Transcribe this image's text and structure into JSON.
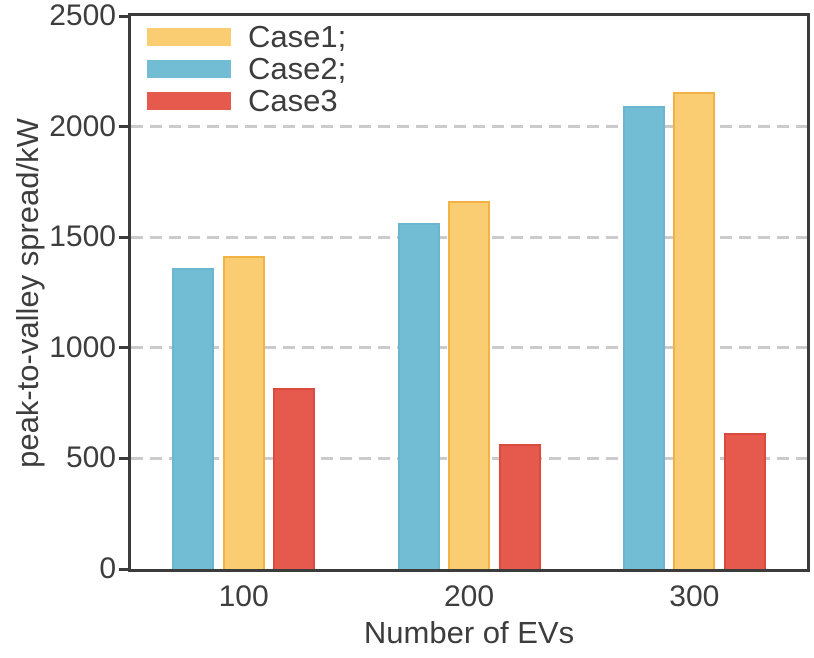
{
  "chart_data": {
    "type": "bar",
    "title": "",
    "xlabel": "Number of EVs",
    "ylabel": "peak-to-valley spread/kW",
    "categories": [
      "100",
      "200",
      "300"
    ],
    "series": [
      {
        "name": "Case1",
        "legend_label": "Case1;",
        "color": "#FACD73",
        "edge_color": "#F2B244",
        "values": [
          1415,
          1665,
          2155
        ]
      },
      {
        "name": "Case2",
        "legend_label": "Case2;",
        "color": "#72BCD4",
        "edge_color": "#6AB6D0",
        "values": [
          1360,
          1565,
          2095
        ]
      },
      {
        "name": "Case3",
        "legend_label": "Case3",
        "color": "#E65A4E",
        "edge_color": "#DA4A3E",
        "values": [
          820,
          565,
          615
        ]
      }
    ],
    "group_draw_order": [
      "Case2",
      "Case1",
      "Case3"
    ],
    "ylim": [
      0,
      2500
    ],
    "y_ticks": [
      0,
      500,
      1000,
      1500,
      2000,
      2500
    ],
    "grid": "horizontal-dashed",
    "legend_position": "top-left-inside",
    "colors": {
      "axis": "#3B3B3B",
      "text": "#3D3D3D",
      "grid": "#CBCBCB",
      "background": "#FFFFFF"
    }
  }
}
